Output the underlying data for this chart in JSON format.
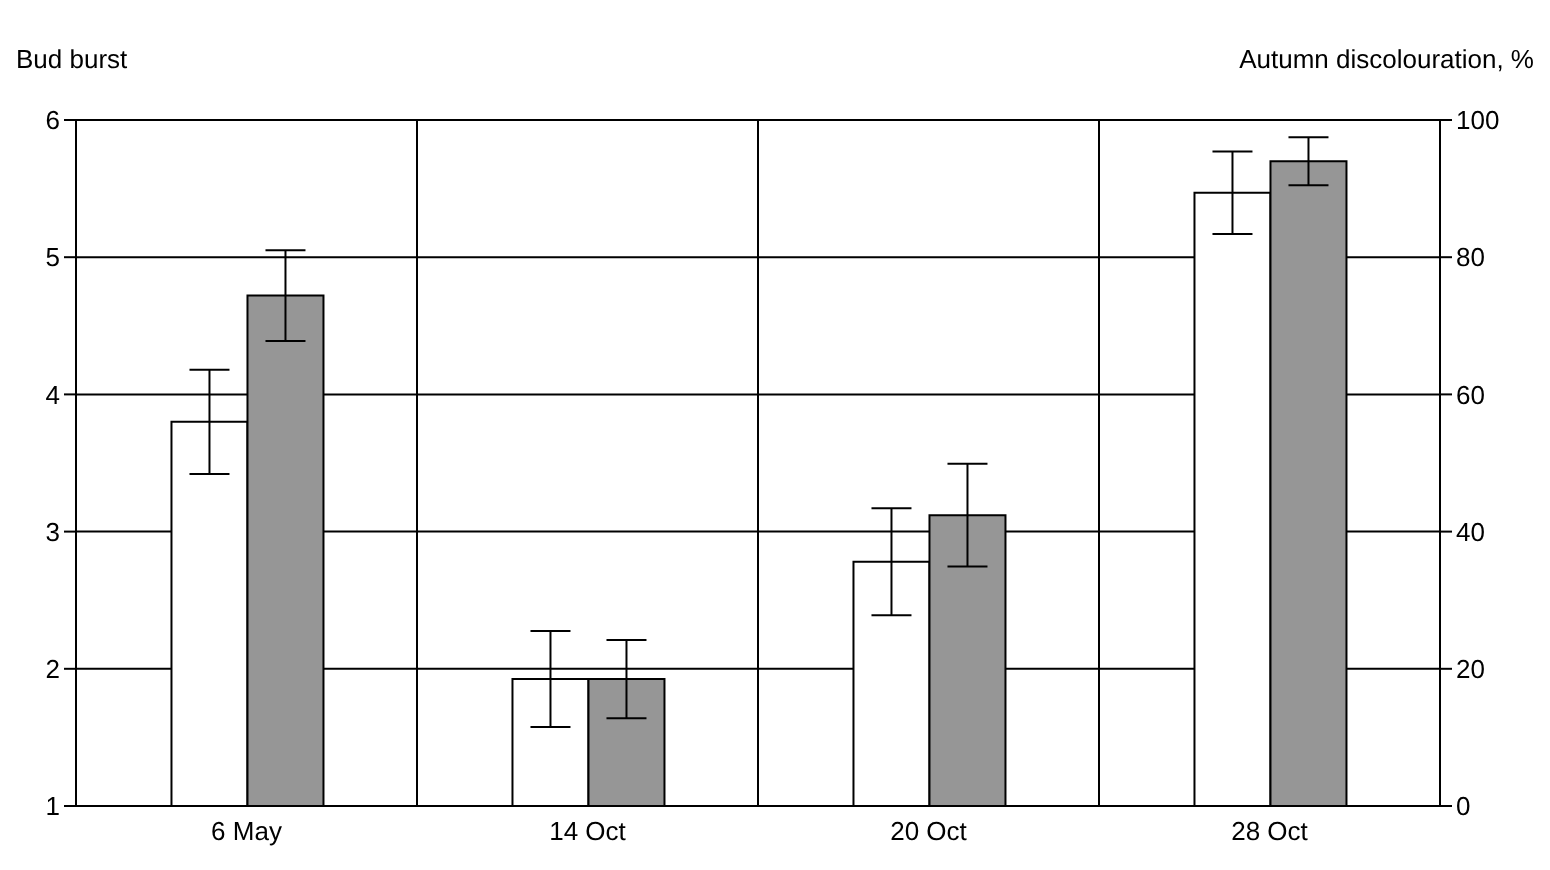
{
  "chart_data": {
    "type": "bar",
    "ylabel": "Bud burst",
    "y2label": "Autumn discolouration, %",
    "categories": [
      "6 May",
      "14 Oct",
      "20 Oct",
      "28 Oct"
    ],
    "series": [
      {
        "color": "#ffffff",
        "values": [
          3.8,
          null,
          null,
          null
        ],
        "errors": [
          0.38,
          null,
          null,
          null
        ]
      },
      {
        "color": "#969696",
        "values": [
          4.72,
          null,
          null,
          null
        ],
        "errors": [
          0.33,
          null,
          null,
          null
        ]
      },
      {
        "axis": "y2",
        "color": "#ffffff",
        "values": [
          null,
          18.5,
          35.6,
          89.4
        ],
        "errors": [
          null,
          7,
          7.8,
          6
        ]
      },
      {
        "axis": "y2",
        "color": "#969696",
        "values": [
          null,
          18.5,
          42.4,
          94
        ],
        "errors": [
          null,
          5.7,
          7.5,
          3.5
        ]
      }
    ],
    "ylim": [
      1,
      6
    ],
    "yticks": [
      1,
      2,
      3,
      4,
      5,
      6
    ],
    "y2lim": [
      0,
      100
    ],
    "y2ticks": [
      0,
      20,
      40,
      60,
      80,
      100
    ],
    "grid": true
  }
}
